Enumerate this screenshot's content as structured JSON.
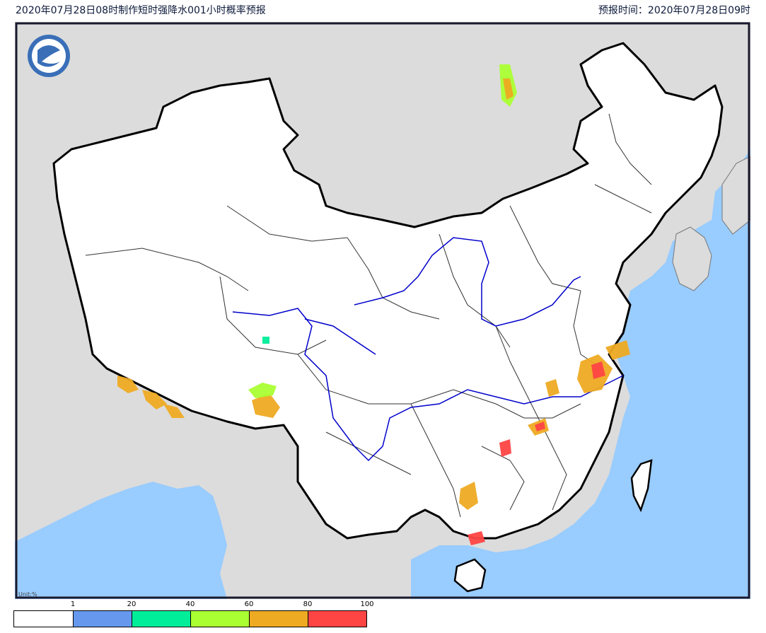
{
  "header": {
    "title": "2020年07月28日08时制作短时强降水001小时概率预报",
    "issue_time": "预报时间：2020年07月28日09时"
  },
  "map": {
    "unit_label": "Unit:%",
    "colors": {
      "land_outside": "#dcdcdc",
      "china": "#ffffff",
      "sea": "#99ccff",
      "rivers": "#0000cc",
      "border": "#000000",
      "frame": "#1a1a2e"
    }
  },
  "legend": {
    "ticks": [
      "1",
      "20",
      "40",
      "60",
      "80",
      "100"
    ],
    "bins": [
      {
        "range": "<1",
        "color": "#ffffff"
      },
      {
        "range": "1-20",
        "color": "#6699ee"
      },
      {
        "range": "20-40",
        "color": "#00ee99"
      },
      {
        "range": "40-60",
        "color": "#aaff33"
      },
      {
        "range": "60-80",
        "color": "#eeaa22"
      },
      {
        "range": "80-100",
        "color": "#ff4444"
      }
    ]
  }
}
